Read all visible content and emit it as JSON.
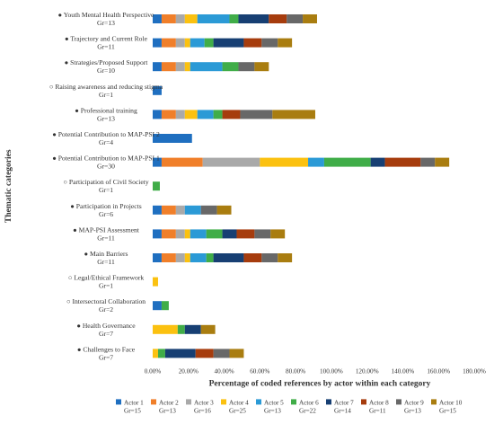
{
  "chart_data": {
    "type": "bar",
    "orientation": "horizontal",
    "stacked": true,
    "xlabel": "Percentage of coded references by actor within each category",
    "ylabel": "Thematic categories",
    "xlim": [
      0,
      180
    ],
    "x_ticks": [
      "0.00%",
      "20.00%",
      "40.00%",
      "60.00%",
      "80.00%",
      "100.00%",
      "120.00%",
      "140.00%",
      "160.00%",
      "180.00%"
    ],
    "x_tick_values": [
      0,
      20,
      40,
      60,
      80,
      100,
      120,
      140,
      160,
      180
    ],
    "grid": false,
    "legend_position": "bottom",
    "categories": [
      {
        "name": "Youth Mental Health Perspective",
        "gr": "Gr=13",
        "marker": "filled"
      },
      {
        "name": "Trajectory and Current Role",
        "gr": "Gr=11",
        "marker": "filled"
      },
      {
        "name": "Strategies/Proposed Support",
        "gr": "Gr=10",
        "marker": "filled"
      },
      {
        "name": "Raising awareness and reducing stigma",
        "gr": "Gr=1",
        "marker": "hollow"
      },
      {
        "name": "Professional training",
        "gr": "Gr=13",
        "marker": "filled"
      },
      {
        "name": "Potential Contribution to MAP-PSI 2",
        "gr": "Gr=4",
        "marker": "filled"
      },
      {
        "name": "Potential Contribution to MAP-PSI 1",
        "gr": "Gr=30",
        "marker": "filled"
      },
      {
        "name": "Participation of Civil Society",
        "gr": "Gr=1",
        "marker": "hollow"
      },
      {
        "name": "Participation in Projects",
        "gr": "Gr=6",
        "marker": "filled"
      },
      {
        "name": "MAP-PSI Assessment",
        "gr": "Gr=11",
        "marker": "filled"
      },
      {
        "name": "Main Barriers",
        "gr": "Gr=11",
        "marker": "filled"
      },
      {
        "name": "Legal/Ethical Framework",
        "gr": "Gr=1",
        "marker": "hollow"
      },
      {
        "name": "Intersectoral Collaboration",
        "gr": "Gr=2",
        "marker": "hollow"
      },
      {
        "name": "Health Governance",
        "gr": "Gr=7",
        "marker": "filled"
      },
      {
        "name": "Challenges to Face",
        "gr": "Gr=7",
        "marker": "filled"
      }
    ],
    "series": [
      {
        "name": "Actor 1",
        "gr": "Gr=15",
        "color": "#1f6fc0",
        "values": [
          5,
          5,
          5,
          5,
          5,
          22,
          5,
          0,
          5,
          5,
          5,
          0,
          5,
          0,
          0
        ]
      },
      {
        "name": "Actor 2",
        "gr": "Gr=13",
        "color": "#f07f2a",
        "values": [
          8,
          8,
          8,
          0,
          8,
          0,
          23,
          0,
          8,
          8,
          8,
          0,
          0,
          0,
          0
        ]
      },
      {
        "name": "Actor 3",
        "gr": "Gr=16",
        "color": "#a9a9a9",
        "values": [
          5,
          5,
          5,
          0,
          5,
          0,
          32,
          0,
          5,
          5,
          5,
          0,
          0,
          0,
          0
        ]
      },
      {
        "name": "Actor 4",
        "gr": "Gr=25",
        "color": "#fbc110",
        "values": [
          7,
          3,
          3,
          0,
          7,
          0,
          27,
          0,
          0,
          3,
          3,
          3,
          0,
          14,
          3
        ]
      },
      {
        "name": "Actor 5",
        "gr": "Gr=13",
        "color": "#2b9ad6",
        "values": [
          18,
          8,
          18,
          0,
          9,
          0,
          9,
          0,
          9,
          9,
          9,
          0,
          0,
          0,
          0
        ]
      },
      {
        "name": "Actor 6",
        "gr": "Gr=22",
        "color": "#40ad48",
        "values": [
          5,
          5,
          9,
          0,
          5,
          0,
          26,
          4,
          0,
          9,
          4,
          0,
          4,
          4,
          4
        ]
      },
      {
        "name": "Actor 7",
        "gr": "Gr=14",
        "color": "#173f73",
        "values": [
          17,
          17,
          0,
          0,
          0,
          0,
          8,
          0,
          0,
          8,
          17,
          0,
          0,
          9,
          17
        ]
      },
      {
        "name": "Actor 8",
        "gr": "Gr=11",
        "color": "#a63c0d",
        "values": [
          10,
          10,
          0,
          0,
          10,
          0,
          20,
          0,
          0,
          10,
          10,
          0,
          0,
          0,
          10
        ]
      },
      {
        "name": "Actor 9",
        "gr": "Gr=13",
        "color": "#686868",
        "values": [
          9,
          9,
          9,
          0,
          18,
          0,
          8,
          0,
          9,
          9,
          9,
          0,
          0,
          0,
          9
        ]
      },
      {
        "name": "Actor 10",
        "gr": "Gr=15",
        "color": "#a97d10",
        "values": [
          8,
          8,
          8,
          0,
          24,
          0,
          8,
          0,
          8,
          8,
          8,
          0,
          0,
          8,
          8
        ]
      }
    ]
  }
}
